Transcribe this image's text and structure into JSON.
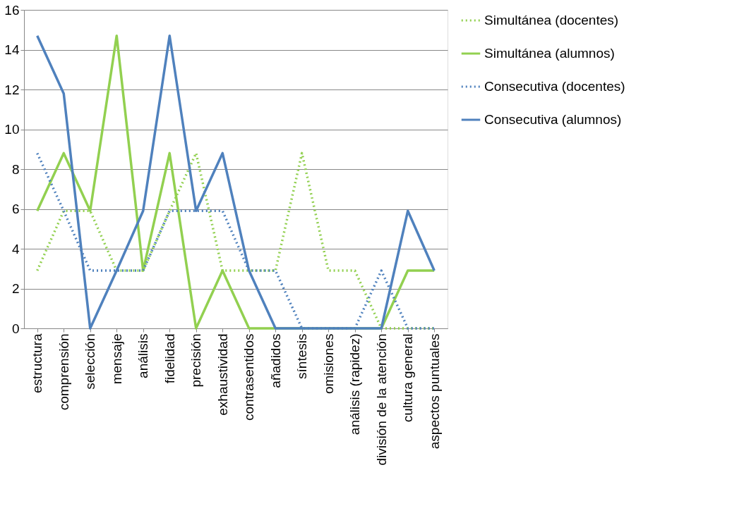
{
  "chart_data": {
    "type": "line",
    "categories": [
      "estructura",
      "comprensión",
      "selección",
      "mensaje",
      "análisis",
      "fidelidad",
      "precisión",
      "exhaustividad",
      "contrasentidos",
      "añadidos",
      "síntesis",
      "omisiones",
      "análisis (rapidez)",
      "división de la atención",
      "cultura general",
      "aspectos puntuales"
    ],
    "series": [
      {
        "name": "Simultánea (docentes)",
        "color": "#92d050",
        "line_style": "dotted",
        "values": [
          2.9,
          5.9,
          5.9,
          2.9,
          2.9,
          5.9,
          8.8,
          2.9,
          2.9,
          2.9,
          8.8,
          2.9,
          2.9,
          0,
          0,
          0
        ]
      },
      {
        "name": "Simultánea (alumnos)",
        "color": "#92d050",
        "line_style": "solid",
        "values": [
          5.9,
          8.8,
          5.9,
          14.7,
          2.9,
          8.8,
          0,
          2.9,
          0,
          0,
          0,
          0,
          0,
          0,
          2.9,
          2.9
        ]
      },
      {
        "name": "Consecutiva (docentes)",
        "color": "#4f81bd",
        "line_style": "dotted",
        "values": [
          8.8,
          5.9,
          2.9,
          2.9,
          2.9,
          5.9,
          5.9,
          5.9,
          2.9,
          2.9,
          0,
          0,
          0,
          2.9,
          0,
          0
        ]
      },
      {
        "name": "Consecutiva (alumnos)",
        "color": "#4f81bd",
        "line_style": "solid",
        "values": [
          14.7,
          11.8,
          0,
          2.9,
          5.9,
          14.7,
          5.9,
          8.8,
          2.9,
          0,
          0,
          0,
          0,
          0,
          5.9,
          2.9
        ]
      }
    ],
    "ylim": [
      0,
      16
    ],
    "yticks": [
      0,
      2,
      4,
      6,
      8,
      10,
      12,
      14,
      16
    ],
    "grid": "y",
    "legend": "right",
    "marker": "none"
  }
}
